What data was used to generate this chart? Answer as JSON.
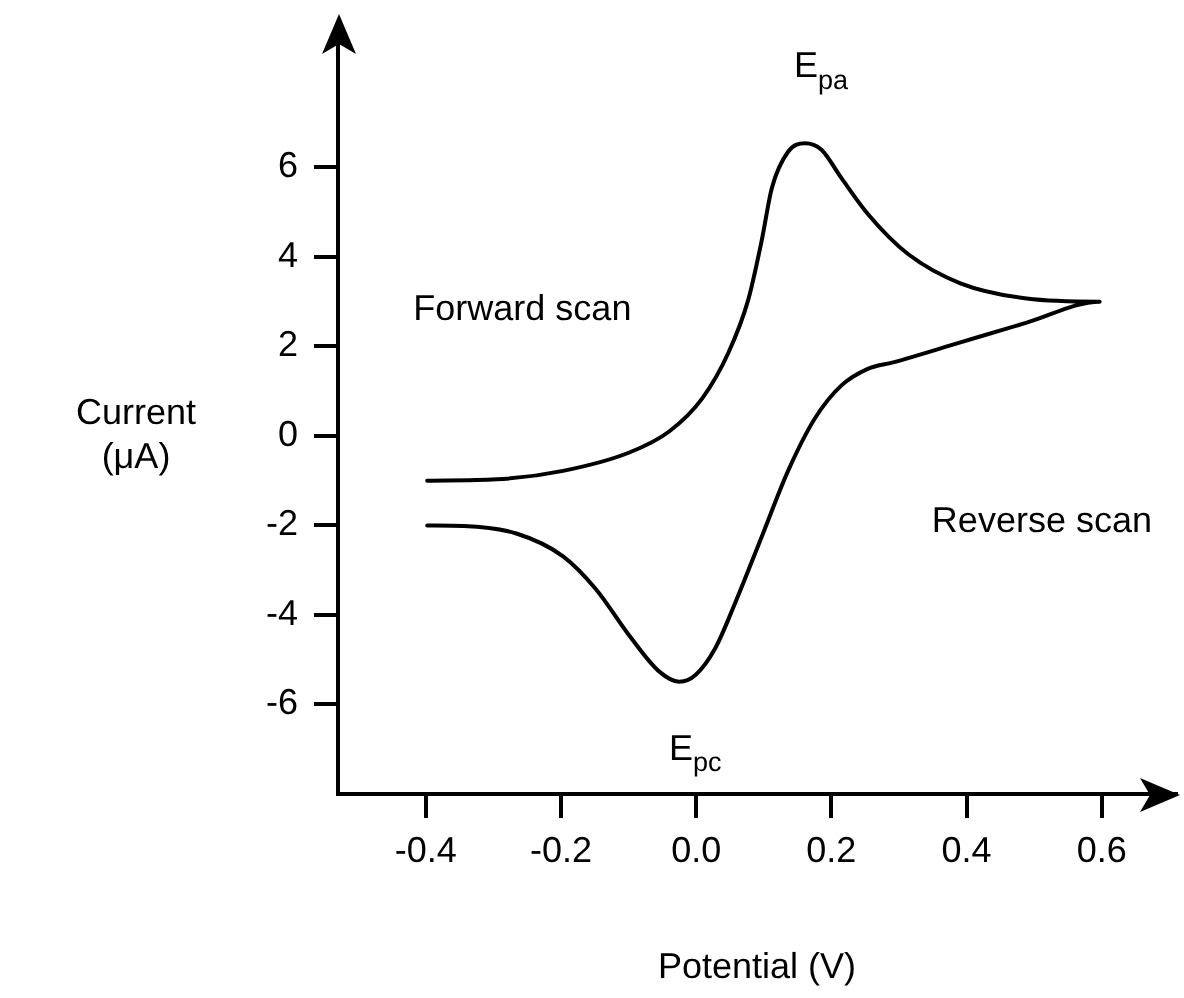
{
  "chart_data": {
    "type": "line",
    "xlabel": "Potential (V)",
    "ylabel": "Current\n(μA)",
    "xlim": [
      -0.53,
      0.71
    ],
    "ylim": [
      -8,
      8.9
    ],
    "xticks": [
      {
        "value": -0.4,
        "label": "-0.4"
      },
      {
        "value": -0.2,
        "label": "-0.2"
      },
      {
        "value": 0,
        "label": "0.0"
      },
      {
        "value": 0.2,
        "label": "0.2"
      },
      {
        "value": 0.4,
        "label": "0.4"
      },
      {
        "value": 0.6,
        "label": "0.6"
      }
    ],
    "yticks": [
      6,
      4,
      2,
      0,
      -2,
      -4,
      -6
    ],
    "grid": false,
    "legend": false,
    "marker": "none",
    "line_style": "solid",
    "series": [
      {
        "color": "#000000",
        "x": [
          -0.398,
          -0.295,
          -0.197,
          -0.099,
          -0.04,
          0.009,
          0.048,
          0.077,
          0.097,
          0.112,
          0.136,
          0.161,
          0.185,
          0.215,
          0.254,
          0.313,
          0.391,
          0.489,
          0.597,
          0.489,
          0.391,
          0.293,
          0.254,
          0.215,
          0.176,
          0.136,
          0.097,
          0.058,
          0.028,
          -0.001,
          -0.025,
          -0.055,
          -0.099,
          -0.148,
          -0.197,
          -0.266,
          -0.344,
          -0.398
        ],
        "values": [
          -1.0,
          -0.97,
          -0.78,
          -0.37,
          0.1,
          0.84,
          1.87,
          3.04,
          4.37,
          5.54,
          6.35,
          6.54,
          6.4,
          5.76,
          4.96,
          4.07,
          3.41,
          3.07,
          3.0,
          2.53,
          2.09,
          1.65,
          1.5,
          1.13,
          0.4,
          -0.78,
          -2.25,
          -3.72,
          -4.75,
          -5.34,
          -5.49,
          -5.26,
          -4.46,
          -3.43,
          -2.69,
          -2.18,
          -2.01,
          -2.0
        ]
      }
    ],
    "annotations": [
      {
        "text": "E$_{pa}$",
        "x": 0.161,
        "y": 6.54
      },
      {
        "text": "E$_{pc}$",
        "x": -0.025,
        "y": -5.49
      },
      "Forward scan",
      "Reverse scan"
    ]
  }
}
